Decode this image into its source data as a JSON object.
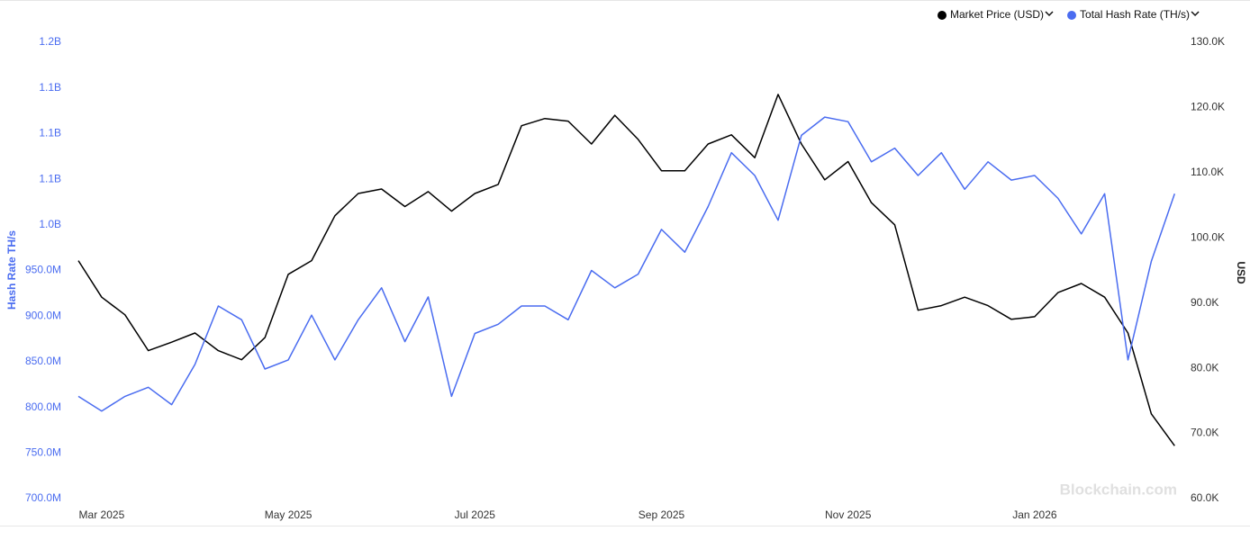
{
  "chart_data": {
    "type": "line",
    "y_label": "Hash Rate TH/s",
    "y2_label": "USD",
    "watermark": "Blockchain.com",
    "categories": [
      null,
      "Mar 2025",
      null,
      null,
      null,
      null,
      null,
      null,
      null,
      "May 2025",
      null,
      null,
      null,
      null,
      null,
      null,
      null,
      "Jul 2025",
      null,
      null,
      null,
      null,
      null,
      null,
      null,
      "Sep 2025",
      null,
      null,
      null,
      null,
      null,
      null,
      null,
      "Nov 2025",
      null,
      null,
      null,
      null,
      null,
      null,
      null,
      "Jan 2026",
      null,
      null,
      null,
      null,
      null,
      null
    ],
    "series": [
      {
        "name": "Market Price (USD)",
        "color": "#000000",
        "axis": "y2",
        "values": [
          96500,
          90900,
          88200,
          82700,
          84000,
          85400,
          82700,
          81300,
          84700,
          94400,
          96500,
          103400,
          106800,
          107500,
          104800,
          107100,
          104100,
          106800,
          108200,
          117200,
          118300,
          117900,
          114400,
          118800,
          115100,
          110300,
          110300,
          114400,
          115800,
          112300,
          122000,
          114400,
          108900,
          111700,
          105400,
          102000,
          88900,
          89600,
          90900,
          89600,
          87500,
          87900,
          91600,
          93000,
          90900,
          85400,
          73000,
          68100
        ]
      },
      {
        "name": "Total Hash Rate (TH/s)",
        "color": "#4a6cf0",
        "values": [
          812000000,
          796000000,
          812000000,
          822000000,
          803000000,
          847000000,
          911000000,
          896000000,
          842000000,
          852000000,
          901000000,
          852000000,
          896000000,
          931000000,
          872000000,
          921000000,
          812000000,
          881000000,
          891000000,
          911000000,
          911000000,
          896000000,
          950000000,
          931000000,
          946000000,
          995000000,
          970000000,
          1020000000,
          1079000000,
          1054000000,
          1005000000,
          1098000000,
          1118000000,
          1113000000,
          1069000000,
          1084000000,
          1054000000,
          1079000000,
          1039000000,
          1069000000,
          1049000000,
          1054000000,
          1029000000,
          990000000,
          1034000000,
          852000000,
          960000000,
          1034000000
        ]
      }
    ],
    "ylim": [
      700000000,
      1200000000
    ],
    "yticks": [
      {
        "value": 700000000,
        "label": "700.0M"
      },
      {
        "value": 750000000,
        "label": "750.0M"
      },
      {
        "value": 800000000,
        "label": "800.0M"
      },
      {
        "value": 850000000,
        "label": "850.0M"
      },
      {
        "value": 900000000,
        "label": "900.0M"
      },
      {
        "value": 950000000,
        "label": "950.0M"
      },
      {
        "value": 1000000000,
        "label": "1.0B"
      },
      {
        "value": 1050000000,
        "label": "1.1B"
      },
      {
        "value": 1100000000,
        "label": "1.1B"
      },
      {
        "value": 1150000000,
        "label": "1.1B"
      },
      {
        "value": 1200000000,
        "label": "1.2B"
      }
    ],
    "y2lim": [
      60000,
      130000
    ],
    "y2ticks": [
      {
        "value": 60000,
        "label": "60.0K"
      },
      {
        "value": 70000,
        "label": "70.0K"
      },
      {
        "value": 80000,
        "label": "80.0K"
      },
      {
        "value": 90000,
        "label": "90.0K"
      },
      {
        "value": 100000,
        "label": "100.0K"
      },
      {
        "value": 110000,
        "label": "110.0K"
      },
      {
        "value": 120000,
        "label": "120.0K"
      },
      {
        "value": 130000,
        "label": "130.0K"
      }
    ]
  }
}
